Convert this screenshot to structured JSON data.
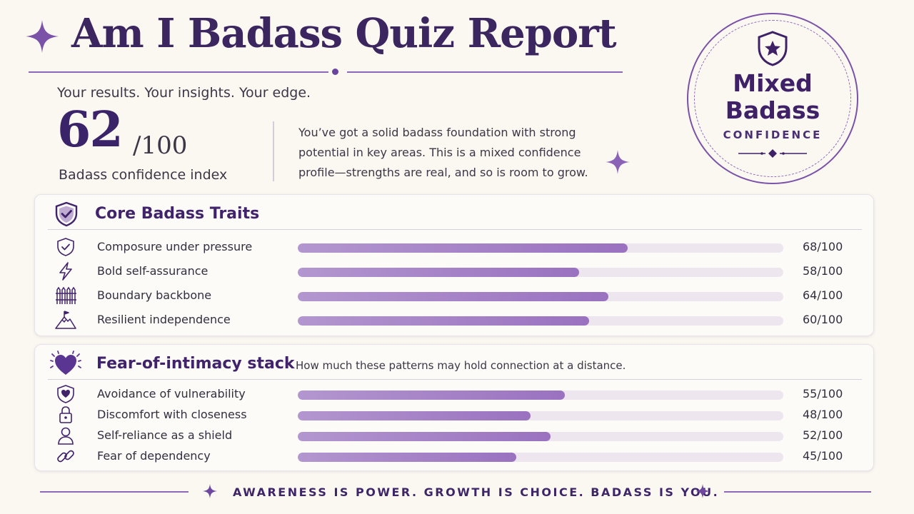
{
  "header": {
    "title": "Am I Badass Quiz Report",
    "subtitle": "Your results. Your insights. Your edge."
  },
  "score": {
    "value": "62",
    "max": "/100",
    "label": "Badass confidence index",
    "summary": "You’ve got a solid badass foundation with strong potential in key areas. This is a mixed confidence profile—strengths are real, and so is room to grow."
  },
  "badge": {
    "line1": "Mixed",
    "line2": "Badass",
    "caption": "CONFIDENCE",
    "icon": "shield-star-icon"
  },
  "core_traits": {
    "title": "Core Badass Traits",
    "icon": "shield-check-icon",
    "items": [
      {
        "label": "Composure under pressure",
        "score": 68,
        "value_text": "68/100",
        "icon": "shield-check-icon"
      },
      {
        "label": "Bold self-assurance",
        "score": 58,
        "value_text": "58/100",
        "icon": "lightning-icon"
      },
      {
        "label": "Boundary backbone",
        "score": 64,
        "value_text": "64/100",
        "icon": "fence-icon"
      },
      {
        "label": "Resilient independence",
        "score": 60,
        "value_text": "60/100",
        "icon": "mountain-flag-icon"
      }
    ]
  },
  "intimacy_stack": {
    "title": "Fear-of-intimacy stack",
    "note": "How much these patterns may hold connection at a distance.",
    "icon": "heart-icon",
    "items": [
      {
        "label": "Avoidance of vulnerability",
        "score": 55,
        "value_text": "55/100",
        "icon": "shield-heart-icon"
      },
      {
        "label": "Discomfort with closeness",
        "score": 48,
        "value_text": "48/100",
        "icon": "lock-icon"
      },
      {
        "label": "Self-reliance as a shield",
        "score": 52,
        "value_text": "52/100",
        "icon": "person-icon"
      },
      {
        "label": "Fear of dependency",
        "score": 45,
        "value_text": "45/100",
        "icon": "link-icon"
      }
    ]
  },
  "footer": {
    "text": "AWARENESS IS POWER. GROWTH IS CHOICE. BADASS IS YOU."
  },
  "colors": {
    "accent": "#3b2660",
    "bar_fill": "#a07ac4",
    "bar_track": "#ede6ef",
    "background": "#fbf8f2"
  }
}
